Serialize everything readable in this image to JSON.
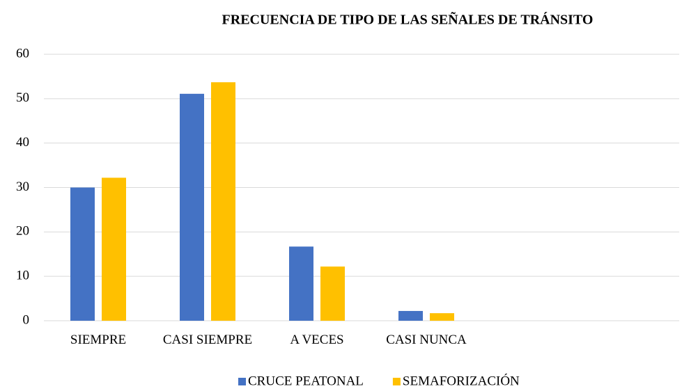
{
  "chart_data": {
    "type": "bar",
    "title": "FRECUENCIA DE TIPO DE LAS SEÑALES DE TRÁNSITO",
    "categories": [
      "SIEMPRE",
      "CASI SIEMPRE",
      "A VECES",
      "CASI NUNCA",
      null,
      null
    ],
    "series": [
      {
        "name": "CRUCE PEATONAL",
        "color": "#4472c4",
        "values": [
          30,
          51.1,
          16.7,
          2.2,
          null,
          null
        ]
      },
      {
        "name": "SEMAFORIZACIÓN",
        "color": "#ffc000",
        "values": [
          32.2,
          53.7,
          12.2,
          1.7,
          null,
          null
        ]
      }
    ],
    "ylim": [
      0,
      60
    ],
    "yticks": [
      0,
      10,
      20,
      30,
      40,
      50,
      60
    ],
    "grid": true,
    "legend": "bottom"
  }
}
